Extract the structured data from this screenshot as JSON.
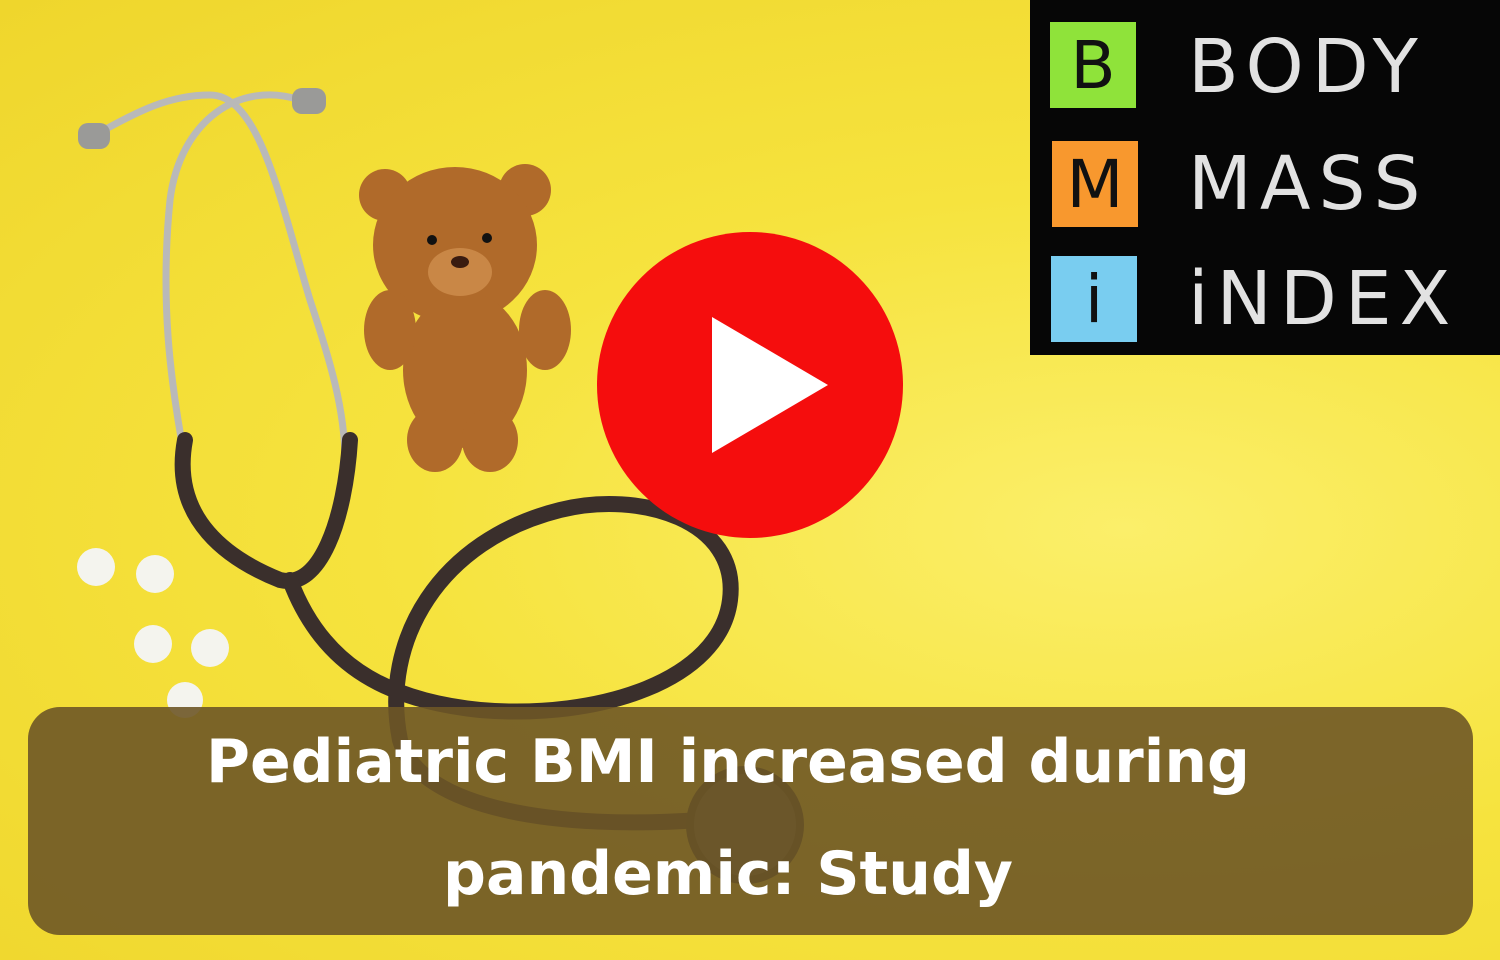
{
  "thumbnail": {
    "caption_line1": "Pediatric BMI increased during",
    "caption_line2": "pandemic: Study",
    "play_icon": "play-button-icon",
    "bmi_panel": {
      "notes": [
        {
          "letter": "B",
          "color": "#8fe33a"
        },
        {
          "letter": "M",
          "color": "#f8982e"
        },
        {
          "letter": "i",
          "color": "#79cdf0"
        }
      ],
      "words": [
        "BODY",
        "MASS",
        "iNDEX"
      ]
    },
    "colors": {
      "background": "#f6e33e",
      "play": "#f50d0d",
      "caption_bg": "#6e5626"
    }
  }
}
